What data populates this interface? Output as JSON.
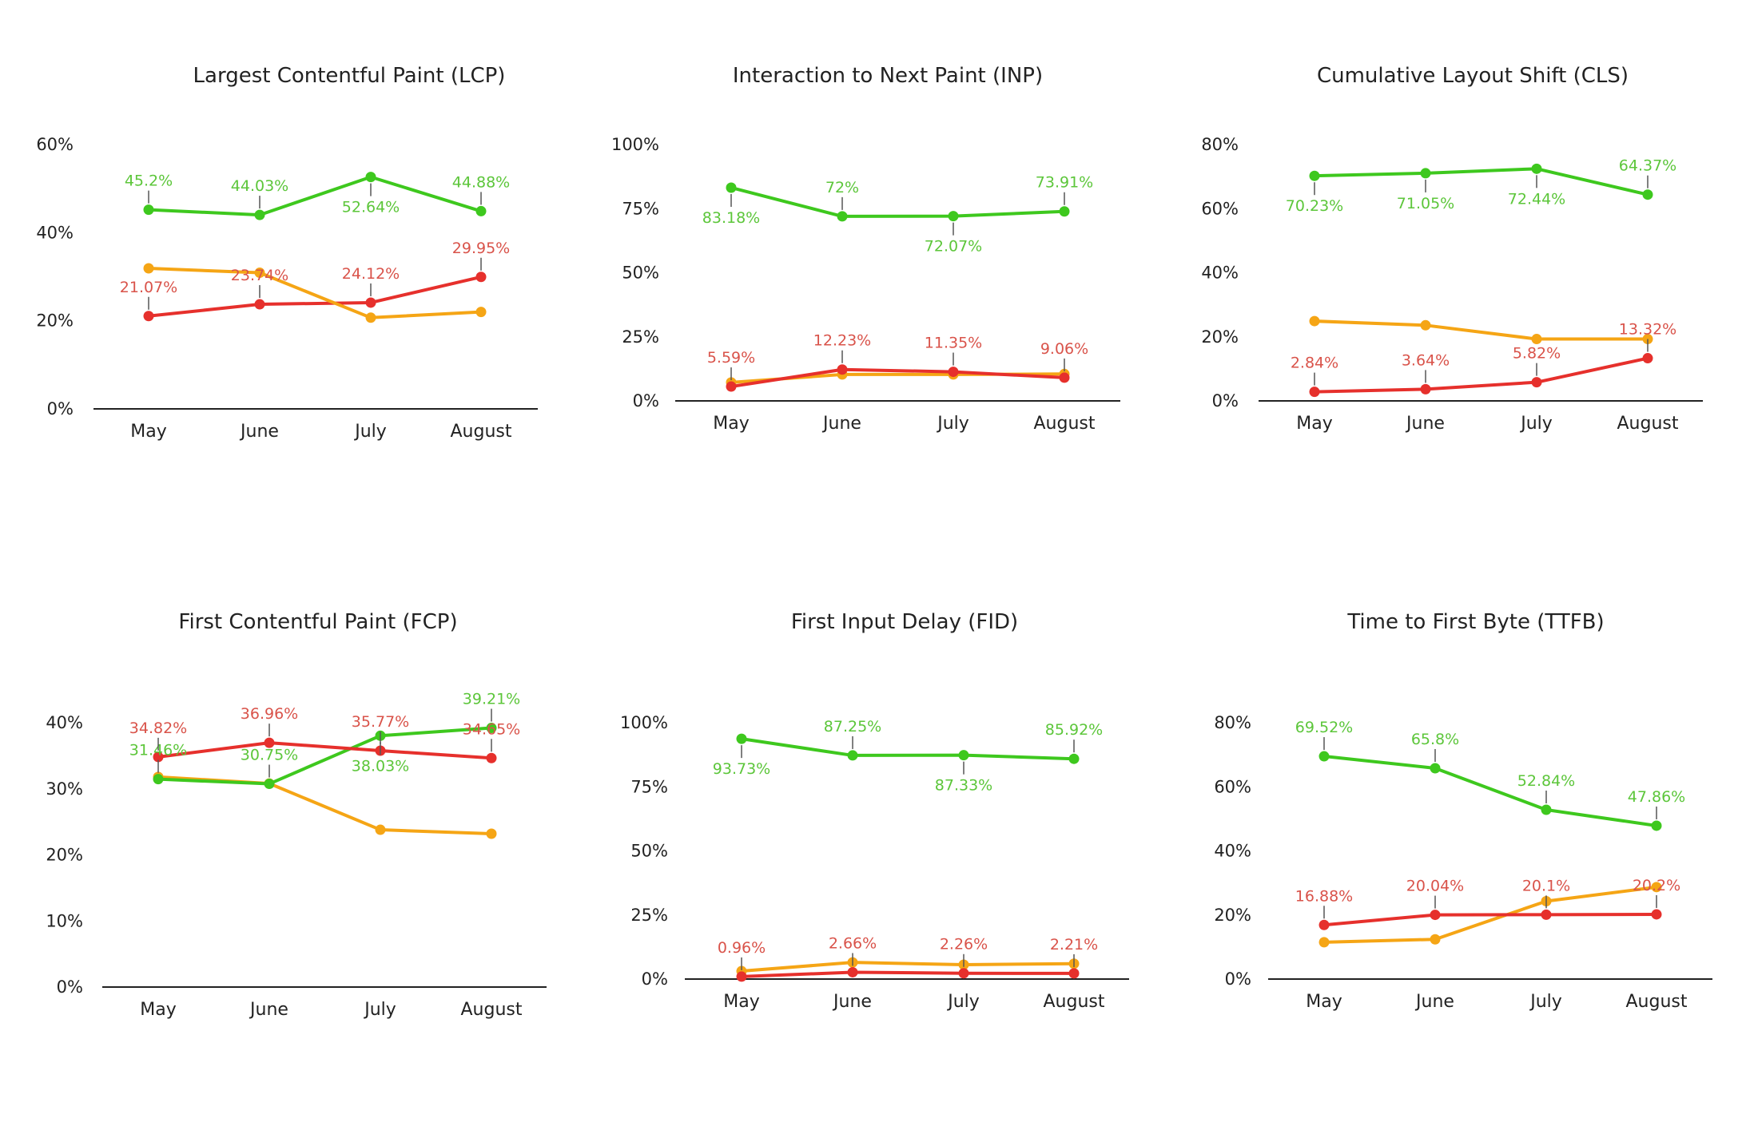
{
  "colors": {
    "good": "#3ec81e",
    "good_text": "#5cc63a",
    "poor": "#e6302c",
    "poor_text": "#d9534a",
    "needs_improvement": "#f5a515",
    "axis": "#222222"
  },
  "chart_data": [
    {
      "type": "line",
      "title": "Largest Contentful Paint (LCP)",
      "categories": [
        "May",
        "June",
        "July",
        "August"
      ],
      "yticks": [
        "0%",
        "20%",
        "40%",
        "60%"
      ],
      "ylim": [
        0,
        60
      ],
      "series": [
        {
          "color": "good",
          "values": [
            45.2,
            44.03,
            52.64,
            44.88
          ],
          "labels": [
            "45.2%",
            "44.03%",
            "52.64%",
            "44.88%"
          ]
        },
        {
          "color": "poor",
          "values": [
            21.07,
            23.74,
            24.12,
            29.95
          ],
          "labels": [
            "21.07%",
            "23.74%",
            "24.12%",
            "29.95%"
          ]
        },
        {
          "color": "needs_improvement",
          "values": [
            31.9,
            30.9,
            20.7,
            22.0
          ]
        }
      ]
    },
    {
      "type": "line",
      "title": "Interaction to Next Paint (INP)",
      "categories": [
        "May",
        "June",
        "July",
        "August"
      ],
      "yticks": [
        "0%",
        "25%",
        "50%",
        "75%",
        "100%"
      ],
      "ylim": [
        0,
        100
      ],
      "series": [
        {
          "color": "good",
          "values": [
            83.18,
            72,
            72.07,
            73.91
          ],
          "labels": [
            "83.18%",
            "72%",
            "72.07%",
            "73.91%"
          ]
        },
        {
          "color": "needs_improvement",
          "values": [
            7.2,
            10.3,
            10.3,
            10.5
          ]
        },
        {
          "color": "poor",
          "values": [
            5.59,
            12.23,
            11.35,
            9.06
          ],
          "labels": [
            "5.59%",
            "12.23%",
            "11.35%",
            "9.06%"
          ]
        }
      ]
    },
    {
      "type": "line",
      "title": "Cumulative Layout Shift (CLS)",
      "categories": [
        "May",
        "June",
        "July",
        "August"
      ],
      "yticks": [
        "0%",
        "20%",
        "40%",
        "60%",
        "80%"
      ],
      "ylim": [
        0,
        80
      ],
      "series": [
        {
          "color": "good",
          "values": [
            70.23,
            71.05,
            72.44,
            64.37
          ],
          "labels": [
            "70.23%",
            "71.05%",
            "72.44%",
            "64.37%"
          ]
        },
        {
          "color": "needs_improvement",
          "values": [
            24.9,
            23.6,
            19.3,
            19.3
          ]
        },
        {
          "color": "poor",
          "values": [
            2.84,
            3.64,
            5.82,
            13.32
          ],
          "labels": [
            "2.84%",
            "3.64%",
            "5.82%",
            "13.32%"
          ]
        }
      ]
    },
    {
      "type": "line",
      "title": "First Contentful Paint (FCP)",
      "categories": [
        "May",
        "June",
        "July",
        "August"
      ],
      "yticks": [
        "0%",
        "10%",
        "20%",
        "30%",
        "40%"
      ],
      "ylim": [
        0,
        40
      ],
      "series": [
        {
          "color": "needs_improvement",
          "values": [
            31.8,
            30.8,
            23.8,
            23.2
          ]
        },
        {
          "color": "good",
          "values": [
            31.46,
            30.75,
            38.03,
            39.21
          ],
          "labels": [
            "31.46%",
            "30.75%",
            "38.03%",
            "39.21%"
          ]
        },
        {
          "color": "poor",
          "values": [
            34.82,
            36.96,
            35.77,
            34.65
          ],
          "labels": [
            "34.82%",
            "36.96%",
            "35.77%",
            "34.65%"
          ]
        }
      ]
    },
    {
      "type": "line",
      "title": "First Input Delay (FID)",
      "categories": [
        "May",
        "June",
        "July",
        "August"
      ],
      "yticks": [
        "0%",
        "25%",
        "50%",
        "75%",
        "100%"
      ],
      "ylim": [
        0,
        100
      ],
      "series": [
        {
          "color": "good",
          "values": [
            93.73,
            87.25,
            87.33,
            85.92
          ],
          "labels": [
            "93.73%",
            "87.25%",
            "87.33%",
            "85.92%"
          ]
        },
        {
          "color": "needs_improvement",
          "values": [
            3.1,
            6.5,
            5.6,
            6.0
          ]
        },
        {
          "color": "poor",
          "values": [
            0.96,
            2.66,
            2.26,
            2.21
          ],
          "labels": [
            "0.96%",
            "2.66%",
            "2.26%",
            "2.21%"
          ]
        }
      ]
    },
    {
      "type": "line",
      "title": "Time to First Byte (TTFB)",
      "categories": [
        "May",
        "June",
        "July",
        "August"
      ],
      "yticks": [
        "0%",
        "20%",
        "40%",
        "60%",
        "80%"
      ],
      "ylim": [
        0,
        80
      ],
      "series": [
        {
          "color": "good",
          "values": [
            69.52,
            65.8,
            52.84,
            47.86
          ],
          "labels": [
            "69.52%",
            "65.8%",
            "52.84%",
            "47.86%"
          ]
        },
        {
          "color": "needs_improvement",
          "values": [
            11.5,
            12.4,
            24.3,
            28.7
          ]
        },
        {
          "color": "poor",
          "values": [
            16.88,
            20.04,
            20.1,
            20.2
          ],
          "labels": [
            "16.88%",
            "20.04%",
            "20.1%",
            "20.2%"
          ]
        }
      ]
    }
  ]
}
